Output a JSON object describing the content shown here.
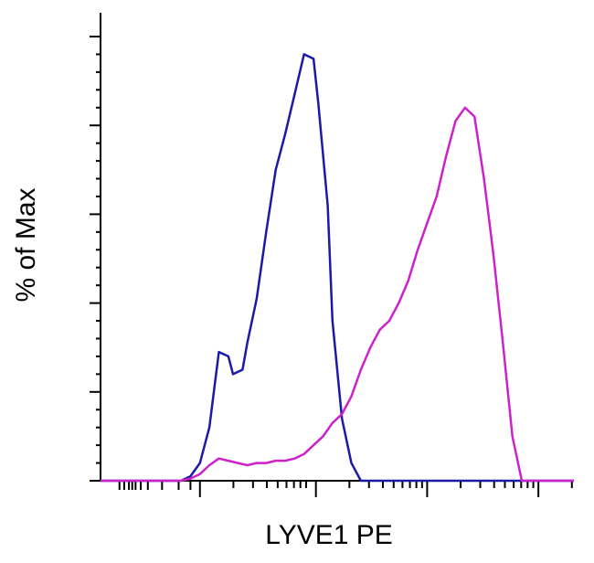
{
  "chart_data": {
    "type": "line",
    "title": "",
    "xlabel": "LYVE1 PE",
    "ylabel": "% of Max",
    "x_scale": "log",
    "x_tick_labels": [],
    "y_tick_labels": [],
    "ylim": [
      0,
      100
    ],
    "grid": false,
    "legend": "none",
    "series": [
      {
        "color": "#1a1aa6",
        "x": [
          0.0,
          0.17,
          0.19,
          0.21,
          0.23,
          0.25,
          0.27,
          0.28,
          0.3,
          0.31,
          0.33,
          0.35,
          0.37,
          0.39,
          0.41,
          0.43,
          0.45,
          0.46,
          0.48,
          0.49,
          0.51,
          0.53,
          0.55,
          0.56,
          0.58,
          0.59,
          0.61,
          0.62,
          1.0
        ],
        "y": [
          0,
          0,
          1,
          4,
          12,
          29,
          28,
          24,
          25,
          31,
          41,
          56,
          70,
          78,
          87,
          96,
          95,
          85,
          62,
          36,
          14,
          4,
          0,
          0,
          0,
          0,
          0,
          0,
          0
        ]
      },
      {
        "color": "#cc22cc",
        "x": [
          0.0,
          0.17,
          0.19,
          0.21,
          0.23,
          0.25,
          0.27,
          0.29,
          0.31,
          0.33,
          0.35,
          0.37,
          0.39,
          0.41,
          0.43,
          0.45,
          0.47,
          0.49,
          0.51,
          0.53,
          0.55,
          0.57,
          0.59,
          0.61,
          0.63,
          0.65,
          0.67,
          0.69,
          0.71,
          0.73,
          0.75,
          0.77,
          0.79,
          0.81,
          0.83,
          0.85,
          0.87,
          0.89,
          0.91,
          0.93,
          0.95,
          0.97,
          1.0
        ],
        "y": [
          0,
          0,
          0.5,
          1.5,
          3.5,
          5,
          4.5,
          4,
          3.5,
          4,
          4,
          4.5,
          4.5,
          5,
          6,
          8,
          10,
          13,
          15,
          19,
          25,
          30,
          34,
          36,
          40,
          45,
          52,
          58,
          64,
          73,
          81,
          84,
          82,
          68,
          51,
          31,
          10,
          0,
          0,
          0,
          0,
          0,
          0
        ]
      }
    ]
  }
}
